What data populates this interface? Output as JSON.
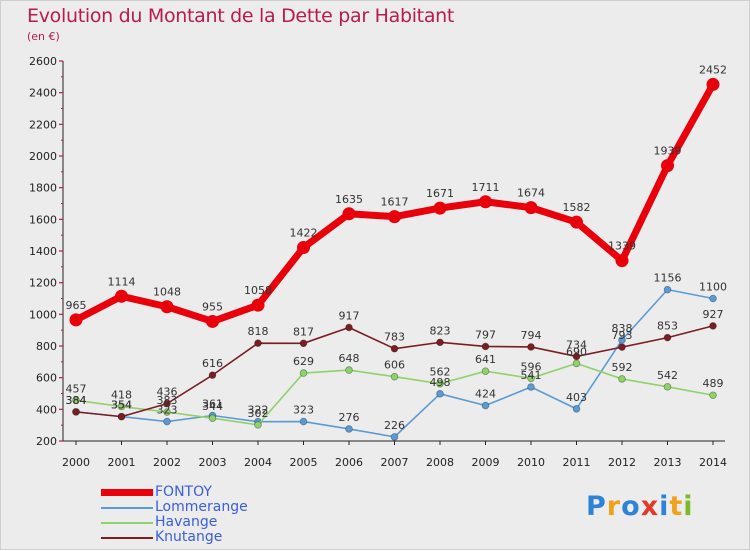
{
  "title": "Evolution du Montant de la Dette par Habitant",
  "subtitle": "(en €)",
  "logo": {
    "text": "Proxiti",
    "letters": [
      {
        "ch": "P",
        "color": "#2d83d6"
      },
      {
        "ch": "r",
        "color": "#f2a11b"
      },
      {
        "ch": "o",
        "color": "#2d83d6"
      },
      {
        "ch": "x",
        "color": "#e23a28"
      },
      {
        "ch": "i",
        "color": "#2d83d6"
      },
      {
        "ch": "t",
        "color": "#f2a11b"
      },
      {
        "ch": "i",
        "color": "#7bb928"
      }
    ]
  },
  "chart_data": {
    "type": "line",
    "title": "Evolution du Montant de la Dette par Habitant",
    "subtitle": "(en €)",
    "categories": [
      "2000",
      "2001",
      "2002",
      "2003",
      "2004",
      "2005",
      "2006",
      "2007",
      "2008",
      "2009",
      "2010",
      "2011",
      "2012",
      "2013",
      "2014"
    ],
    "ylim": [
      200,
      2600
    ],
    "yticks": [
      200,
      400,
      600,
      800,
      1000,
      1200,
      1400,
      1600,
      1800,
      2000,
      2200,
      2400,
      2600
    ],
    "grid": false,
    "legend": "bottom-left",
    "series": [
      {
        "name": "FONTOY",
        "color": "#e8000b",
        "width": "thick",
        "values": [
          965,
          1114,
          1048,
          955,
          1058,
          1422,
          1635,
          1617,
          1671,
          1711,
          1674,
          1582,
          1339,
          1939,
          2452
        ],
        "labels": [
          "965",
          "1114",
          "1048",
          "955",
          "1058",
          "1422",
          "1635",
          "1617",
          "1671",
          "1711",
          "1674",
          "1582",
          "1339",
          "1939",
          "2452"
        ]
      },
      {
        "name": "Lommerange",
        "color": "#5b9bd5",
        "width": "thin",
        "values": [
          384,
          354,
          323,
          361,
          322,
          323,
          276,
          226,
          498,
          424,
          541,
          403,
          838,
          1156,
          1100
        ],
        "labels": [
          "384",
          "354",
          "323",
          "361",
          "322",
          "323",
          "276",
          "226",
          "498",
          "424",
          "541",
          "403",
          "838",
          "1156",
          "1100"
        ]
      },
      {
        "name": "Havange",
        "color": "#8fd16a",
        "width": "thin",
        "values": [
          457,
          418,
          383,
          344,
          302,
          629,
          648,
          606,
          562,
          641,
          596,
          690,
          592,
          542,
          489
        ],
        "labels": [
          "457",
          "418",
          "383",
          "344",
          "302",
          "629",
          "648",
          "606",
          "562",
          "641",
          "596",
          "690",
          "592",
          "542",
          "489"
        ]
      },
      {
        "name": "Knutange",
        "color": "#7a1e24",
        "width": "thin",
        "values": [
          384,
          354,
          436,
          616,
          818,
          817,
          917,
          783,
          823,
          797,
          794,
          734,
          793,
          853,
          927
        ],
        "labels": [
          "384",
          "354",
          "436",
          "616",
          "818",
          "817",
          "917",
          "783",
          "823",
          "797",
          "794",
          "734",
          "793",
          "853",
          "927"
        ]
      }
    ]
  }
}
